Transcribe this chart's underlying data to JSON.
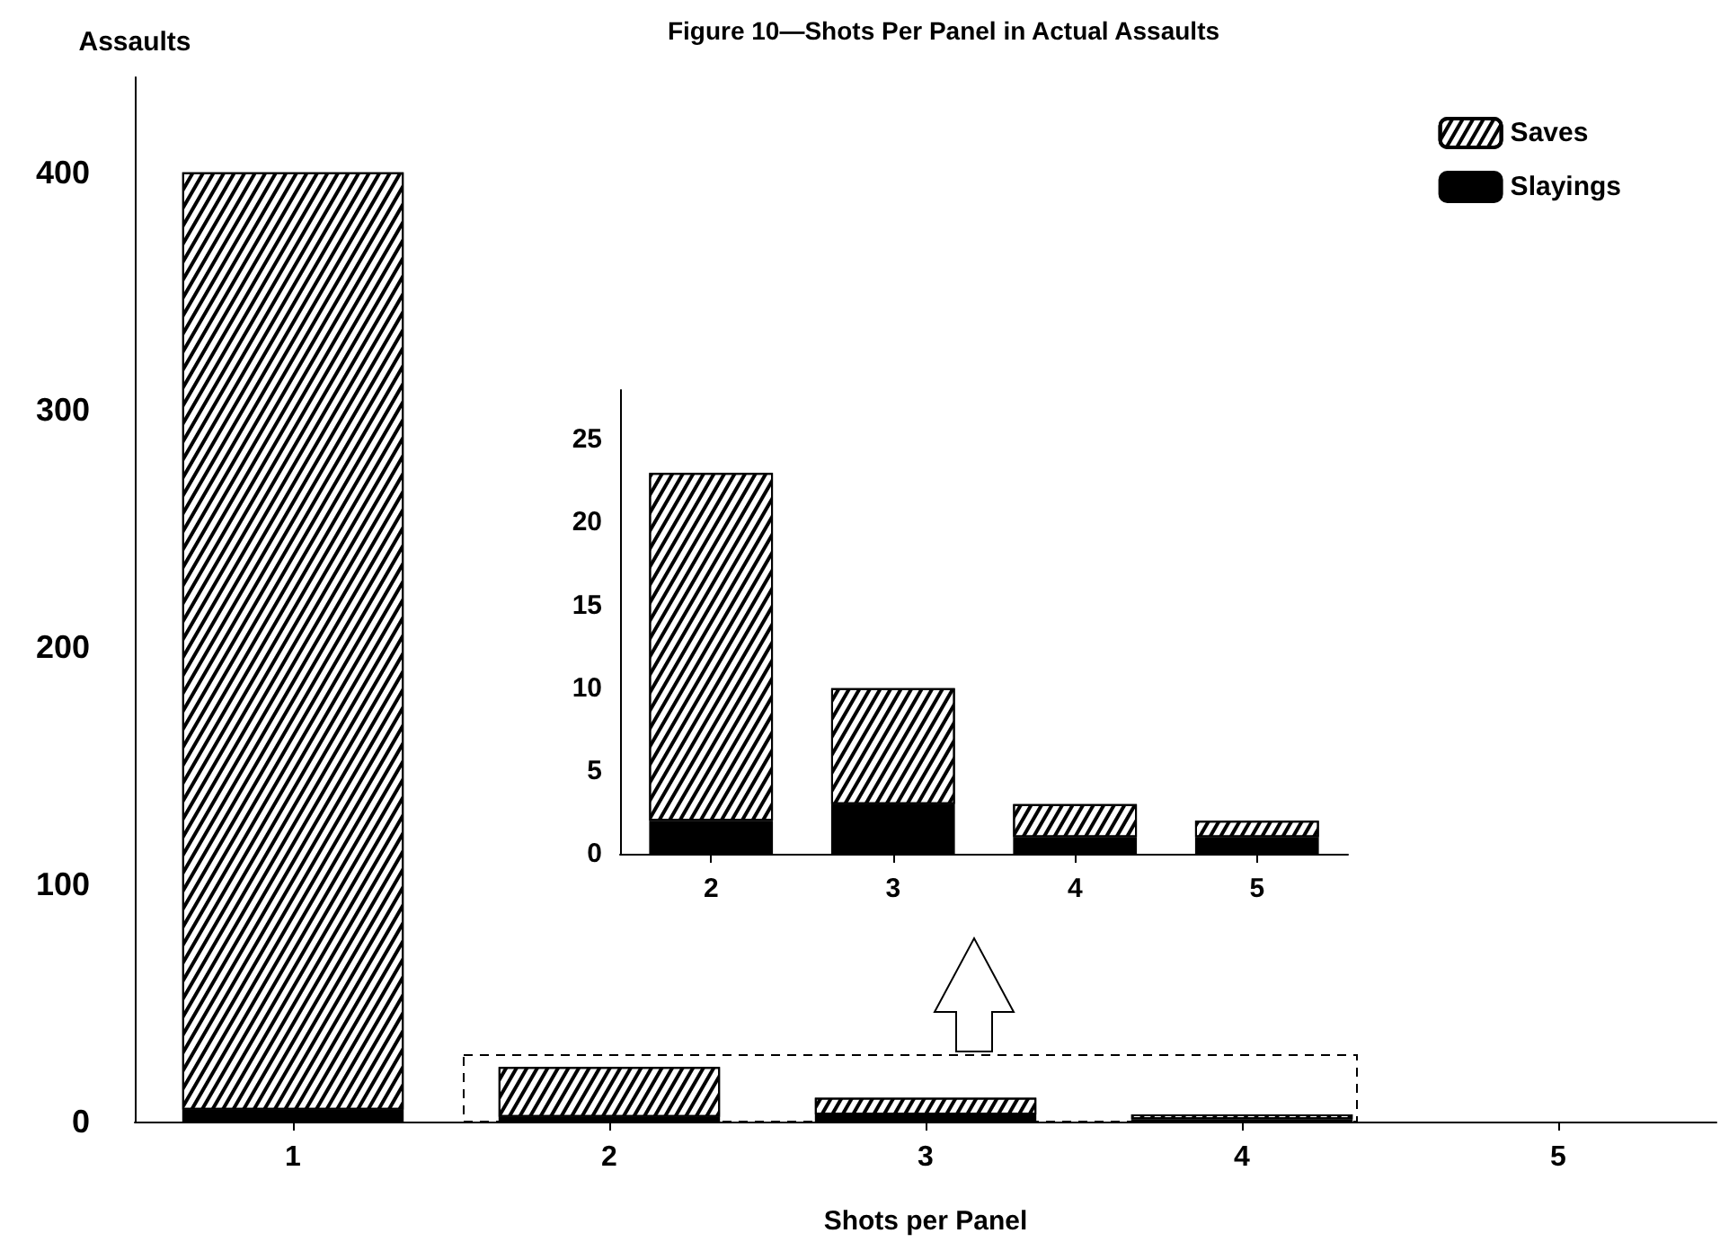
{
  "chart_data": [
    {
      "type": "bar",
      "title": "Figure 10—Shots Per Panel in Actual Assaults",
      "xlabel": "Shots per Panel",
      "ylabel": "Assaults",
      "categories": [
        "1",
        "2",
        "3",
        "4",
        "5"
      ],
      "stacked": true,
      "ylim": [
        0,
        440
      ],
      "yticks": [
        0,
        100,
        200,
        300,
        400
      ],
      "legend": "top right",
      "grid": false,
      "series": [
        {
          "name": "Slayings",
          "color": "#000000",
          "values": [
            5,
            2,
            3,
            1,
            null
          ]
        },
        {
          "name": "Saves",
          "color": "#ffffff",
          "values": [
            395,
            21,
            7,
            2,
            null
          ]
        }
      ]
    },
    {
      "type": "bar",
      "categories": [
        "2",
        "3",
        "4",
        "5"
      ],
      "stacked": true,
      "ylim": [
        0,
        28
      ],
      "yticks": [
        0,
        5,
        10,
        15,
        20,
        25
      ],
      "legend": false,
      "grid": false,
      "series": [
        {
          "color": "#000000",
          "values": [
            2,
            3,
            1,
            1
          ]
        },
        {
          "color": "#ffffff",
          "values": [
            21,
            7,
            2,
            1
          ]
        }
      ]
    }
  ]
}
